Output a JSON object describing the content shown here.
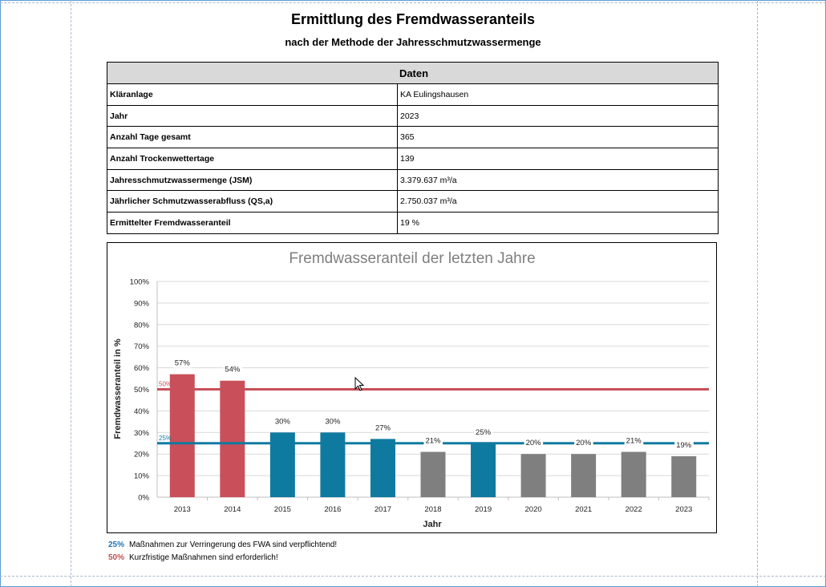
{
  "header": {
    "title": "Ermittlung des Fremdwasseranteils",
    "subtitle": "nach der Methode der Jahresschmutzwassermenge"
  },
  "table": {
    "heading": "Daten",
    "rows": [
      {
        "label": "Kläranlage",
        "value": "KA Eulingshausen"
      },
      {
        "label": "Jahr",
        "value": "2023"
      },
      {
        "label": "Anzahl Tage gesamt",
        "value": "365"
      },
      {
        "label": "Anzahl Trockenwettertage",
        "value": "139"
      },
      {
        "label": "Jahresschmutzwassermenge (JSM)",
        "value": "3.379.637 m³/a"
      },
      {
        "label": "Jährlicher Schmutzwasserabfluss (QS,a)",
        "value": "2.750.037 m³/a"
      },
      {
        "label": "Ermittelter Fremdwasseranteil",
        "value": "19 %"
      }
    ]
  },
  "chart_data": {
    "type": "bar",
    "title": "Fremdwasseranteil der letzten Jahre",
    "xlabel": "Jahr",
    "ylabel": "Fremdwasseranteil in %",
    "ylim": [
      0,
      100
    ],
    "yticks": [
      "0%",
      "10%",
      "20%",
      "30%",
      "40%",
      "50%",
      "60%",
      "70%",
      "80%",
      "90%",
      "100%"
    ],
    "grid": true,
    "categories": [
      "2013",
      "2014",
      "2015",
      "2016",
      "2017",
      "2018",
      "2019",
      "2020",
      "2021",
      "2022",
      "2023"
    ],
    "values": [
      57,
      54,
      30,
      30,
      27,
      21,
      25,
      20,
      20,
      21,
      19
    ],
    "data_labels": [
      "57%",
      "54%",
      "30%",
      "30%",
      "27%",
      "21%",
      "25%",
      "20%",
      "20%",
      "21%",
      "19%"
    ],
    "bar_colors": [
      "#c9505a",
      "#c9505a",
      "#0f7aa0",
      "#0f7aa0",
      "#0f7aa0",
      "#7f7f7f",
      "#0f7aa0",
      "#7f7f7f",
      "#7f7f7f",
      "#7f7f7f",
      "#7f7f7f"
    ],
    "thresholds": [
      {
        "value": 50,
        "label": "50%",
        "color": "#c9505a"
      },
      {
        "value": 25,
        "label": "25%",
        "color": "#0f7aa0"
      }
    ]
  },
  "legend": [
    {
      "pct": "25%",
      "text": "Maßnahmen zur Verringerung des FWA sind verpflichtend!",
      "color": "#1f74b4"
    },
    {
      "pct": "50%",
      "text": "Kurzfristige Maßnahmen sind erforderlich!",
      "color": "#c0504d"
    }
  ]
}
